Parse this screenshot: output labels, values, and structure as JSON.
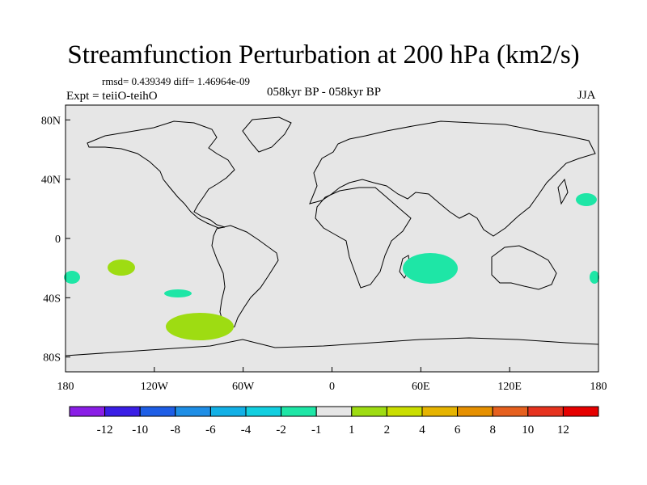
{
  "title": "Streamfunction Perturbation at 200 hPa (km2/s)",
  "stats": "rmsd= 0.439349 diff= 1.46964e-09",
  "experiment": "Expt = teiiO-teihO",
  "period": "058kyr BP - 058kyr BP",
  "season": "JJA",
  "map": {
    "lon_ticks": [
      "180",
      "120W",
      "60W",
      "0",
      "60E",
      "120E",
      "180"
    ],
    "lat_ticks": [
      "80N",
      "40N",
      "0",
      "40S",
      "80S"
    ],
    "land_color": "#e6e6e6",
    "coast_color": "#000000"
  },
  "colorbar": {
    "labels": [
      "-12",
      "-10",
      "-8",
      "-6",
      "-4",
      "-2",
      "-1",
      "1",
      "2",
      "4",
      "6",
      "8",
      "10",
      "12"
    ],
    "colors": [
      "#8a1ee6",
      "#3a1ee6",
      "#1e5ee6",
      "#1e8ee6",
      "#12b0e6",
      "#12cfe0",
      "#1ee6a6",
      "#e6e6e6",
      "#9edc12",
      "#cade00",
      "#e6b400",
      "#e69000",
      "#e6601e",
      "#e6321e",
      "#e60000"
    ]
  }
}
